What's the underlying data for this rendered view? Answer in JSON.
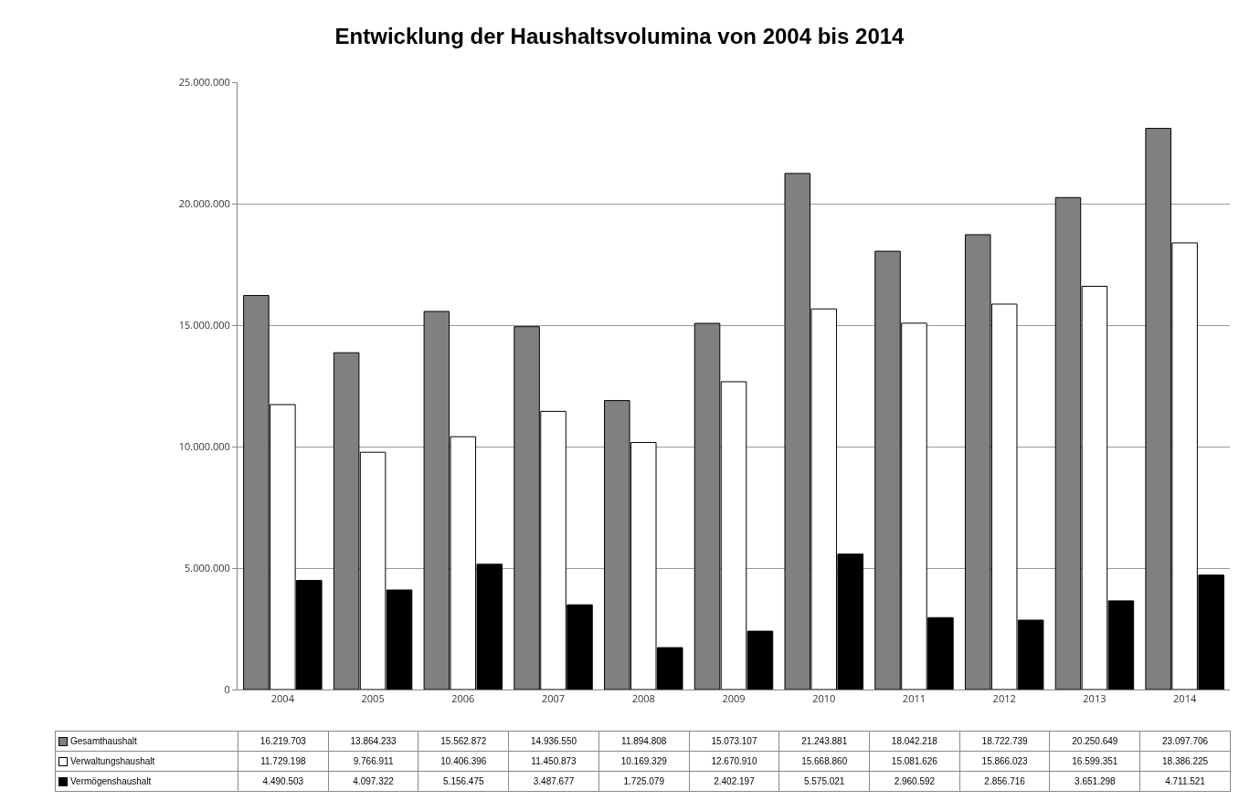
{
  "chart_data": {
    "type": "bar",
    "title": "Entwicklung der Haushaltsvolumina von 2004 bis 2014",
    "categories": [
      "2004",
      "2005",
      "2006",
      "2007",
      "2008",
      "2009",
      "2010",
      "2011",
      "2012",
      "2013",
      "2014"
    ],
    "series": [
      {
        "name": "Gesamthaushalt",
        "color": "#808080",
        "values": [
          16219703,
          13864233,
          15562872,
          14936550,
          11894808,
          15073107,
          21243881,
          18042218,
          18722739,
          20250649,
          23097706
        ],
        "value_labels": [
          "16.219.703",
          "13.864.233",
          "15.562.872",
          "14.936.550",
          "11.894.808",
          "15.073.107",
          "21.243.881",
          "18.042.218",
          "18.722.739",
          "20.250.649",
          "23.097.706"
        ]
      },
      {
        "name": "Verwaltungshaushalt",
        "color": "#ffffff",
        "values": [
          11729198,
          9766911,
          10406396,
          11450873,
          10169329,
          12670910,
          15668860,
          15081626,
          15866023,
          16599351,
          18386225
        ],
        "value_labels": [
          "11.729.198",
          "9.766.911",
          "10.406.396",
          "11.450.873",
          "10.169.329",
          "12.670.910",
          "15.668.860",
          "15.081.626",
          "15.866.023",
          "16.599.351",
          "18.386.225"
        ]
      },
      {
        "name": "Vermögenshaushalt",
        "color": "#000000",
        "values": [
          4490503,
          4097322,
          5156475,
          3487677,
          1725079,
          2402197,
          5575021,
          2960592,
          2856716,
          3651298,
          4711521
        ],
        "value_labels": [
          "4.490.503",
          "4.097.322",
          "5.156.475",
          "3.487.677",
          "1.725.079",
          "2.402.197",
          "5.575.021",
          "2.960.592",
          "2.856.716",
          "3.651.298",
          "4.711.521"
        ]
      }
    ],
    "ylim": [
      0,
      25000000
    ],
    "yticks": [
      {
        "value": 0,
        "label": "0"
      },
      {
        "value": 5000000,
        "label": "5.000.000"
      },
      {
        "value": 10000000,
        "label": "10.000.000"
      },
      {
        "value": 15000000,
        "label": "15.000.000"
      },
      {
        "value": 20000000,
        "label": "20.000.000"
      },
      {
        "value": 25000000,
        "label": "25.000.000"
      }
    ],
    "grid": "y",
    "legend": "bottom"
  }
}
